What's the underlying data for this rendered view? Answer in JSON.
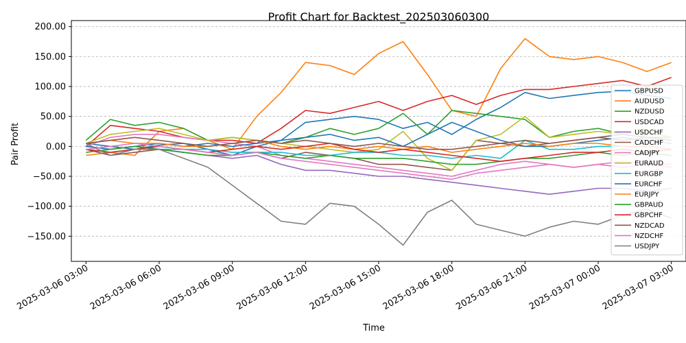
{
  "chart_data": {
    "type": "line",
    "title": "Profit Chart for Backtest_202503060300",
    "xlabel": "Time",
    "ylabel": "Pair Profit",
    "xlim": [
      "2025-03-06 02:24",
      "2025-03-07 03:36"
    ],
    "ylim": [
      -192,
      210
    ],
    "grid": "y-dashed",
    "legend_position": "right",
    "x_ticks": [
      {
        "label": "2025-03-06 03:00",
        "hour": 3
      },
      {
        "label": "2025-03-06 06:00",
        "hour": 6
      },
      {
        "label": "2025-03-06 09:00",
        "hour": 9
      },
      {
        "label": "2025-03-06 12:00",
        "hour": 12
      },
      {
        "label": "2025-03-06 15:00",
        "hour": 15
      },
      {
        "label": "2025-03-06 18:00",
        "hour": 18
      },
      {
        "label": "2025-03-06 21:00",
        "hour": 21
      },
      {
        "label": "2025-03-07 00:00",
        "hour": 24
      },
      {
        "label": "2025-03-07 03:00",
        "hour": 27
      }
    ],
    "y_ticks": [
      {
        "label": "200.00",
        "value": 200
      },
      {
        "label": "150.00",
        "value": 150
      },
      {
        "label": "100.00",
        "value": 100
      },
      {
        "label": "50.00",
        "value": 50
      },
      {
        "label": "0.00",
        "value": 0
      },
      {
        "label": "−50.00",
        "value": -50
      },
      {
        "label": "−100.00",
        "value": -100
      },
      {
        "label": "−150.00",
        "value": -150
      }
    ],
    "x_hours": [
      3,
      4,
      5,
      6,
      7,
      8,
      9,
      10,
      11,
      12,
      13,
      14,
      15,
      16,
      17,
      18,
      19,
      20,
      21,
      22,
      23,
      24,
      25,
      26,
      27
    ],
    "series": [
      {
        "name": "GBPUSD",
        "color": "#1f77b4",
        "values": [
          5,
          0,
          -5,
          2,
          5,
          -5,
          -15,
          0,
          10,
          40,
          45,
          50,
          45,
          30,
          40,
          20,
          45,
          65,
          90,
          80,
          85,
          90,
          92,
          85,
          80
        ]
      },
      {
        "name": "AUDUSD",
        "color": "#ff7f0e",
        "values": [
          -15,
          -10,
          -15,
          25,
          30,
          10,
          -5,
          50,
          90,
          140,
          135,
          120,
          155,
          175,
          120,
          60,
          50,
          130,
          180,
          150,
          145,
          150,
          140,
          125,
          140
        ]
      },
      {
        "name": "NZDUSD",
        "color": "#2ca02c",
        "values": [
          10,
          45,
          35,
          40,
          30,
          10,
          15,
          10,
          5,
          15,
          30,
          20,
          30,
          55,
          20,
          60,
          55,
          50,
          45,
          15,
          25,
          30,
          20,
          15,
          15
        ]
      },
      {
        "name": "USDCAD",
        "color": "#d62728",
        "values": [
          0,
          35,
          30,
          25,
          15,
          10,
          10,
          5,
          30,
          60,
          55,
          65,
          75,
          60,
          75,
          85,
          70,
          85,
          95,
          95,
          100,
          105,
          110,
          100,
          115
        ]
      },
      {
        "name": "USDCHF",
        "color": "#9467bd",
        "values": [
          0,
          -5,
          0,
          -5,
          -10,
          -15,
          -20,
          -15,
          -30,
          -40,
          -40,
          -45,
          -50,
          -50,
          -55,
          -60,
          -65,
          -70,
          -75,
          -80,
          -75,
          -70,
          -70,
          -75,
          -70
        ]
      },
      {
        "name": "CADCHF",
        "color": "#8c564b",
        "values": [
          -5,
          -15,
          -10,
          -5,
          -10,
          -15,
          -15,
          -10,
          -20,
          -10,
          -15,
          -20,
          -30,
          -30,
          -35,
          -40,
          10,
          5,
          0,
          5,
          10,
          15,
          10,
          15,
          10
        ]
      },
      {
        "name": "CADJPY",
        "color": "#e377c2",
        "values": [
          0,
          15,
          20,
          20,
          15,
          10,
          5,
          0,
          -15,
          -20,
          -25,
          -30,
          -35,
          -40,
          -45,
          -50,
          -40,
          -30,
          -25,
          -30,
          -35,
          -30,
          -25,
          -30,
          -30
        ]
      },
      {
        "name": "EURAUD",
        "color": "#bcbd22",
        "values": [
          5,
          20,
          25,
          30,
          20,
          10,
          15,
          10,
          5,
          0,
          -5,
          -10,
          -5,
          25,
          -20,
          -40,
          10,
          20,
          50,
          15,
          20,
          25,
          20,
          25,
          15
        ]
      },
      {
        "name": "EURGBP",
        "color": "#17becf",
        "values": [
          -5,
          -10,
          -5,
          -5,
          -5,
          -5,
          -10,
          -10,
          -10,
          -15,
          -15,
          -10,
          -10,
          -15,
          -15,
          -20,
          -15,
          -20,
          10,
          -5,
          -5,
          0,
          0,
          0,
          -5
        ]
      },
      {
        "name": "EURCHF",
        "color": "#1f77b4",
        "values": [
          0,
          -5,
          0,
          5,
          0,
          5,
          0,
          5,
          10,
          15,
          20,
          10,
          15,
          0,
          20,
          40,
          25,
          10,
          0,
          0,
          5,
          10,
          15,
          10,
          5
        ]
      },
      {
        "name": "EURJPY",
        "color": "#ff7f0e",
        "values": [
          5,
          10,
          5,
          5,
          0,
          0,
          5,
          10,
          0,
          -5,
          0,
          -5,
          0,
          -5,
          0,
          -10,
          -5,
          0,
          5,
          0,
          5,
          5,
          0,
          0,
          -5
        ]
      },
      {
        "name": "GBPAUD",
        "color": "#2ca02c",
        "values": [
          -10,
          -5,
          0,
          -5,
          -10,
          -15,
          -15,
          -10,
          -15,
          -20,
          -15,
          -20,
          -20,
          -20,
          -25,
          -30,
          -30,
          -25,
          -20,
          -20,
          -15,
          -10,
          -15,
          -10,
          -15
        ]
      },
      {
        "name": "GBPCHF",
        "color": "#d62728",
        "values": [
          -5,
          -10,
          -5,
          0,
          -5,
          -10,
          -5,
          0,
          -5,
          0,
          5,
          -5,
          -10,
          -5,
          -10,
          -15,
          -20,
          -25,
          -20,
          -15,
          -10,
          -10,
          -5,
          -10,
          -5
        ]
      },
      {
        "name": "NZDCAD",
        "color": "#8c564b",
        "values": [
          5,
          10,
          15,
          10,
          5,
          0,
          5,
          10,
          5,
          10,
          5,
          0,
          5,
          0,
          -5,
          -5,
          0,
          5,
          10,
          5,
          10,
          15,
          20,
          15,
          10
        ]
      },
      {
        "name": "NZDCHF",
        "color": "#e377c2",
        "values": [
          -5,
          0,
          5,
          0,
          -5,
          -10,
          -15,
          -10,
          -20,
          -25,
          -30,
          -35,
          -40,
          -45,
          -50,
          -55,
          -45,
          -40,
          -35,
          -30,
          -35,
          -30,
          -35,
          -30,
          -35
        ]
      },
      {
        "name": "USDJPY",
        "color": "#7f7f7f",
        "values": [
          5,
          -15,
          -5,
          -5,
          -20,
          -35,
          -65,
          -95,
          -125,
          -130,
          -95,
          -100,
          -130,
          -165,
          -110,
          -90,
          -130,
          -140,
          -150,
          -135,
          -125,
          -130,
          -115,
          -105,
          -120
        ]
      }
    ]
  }
}
